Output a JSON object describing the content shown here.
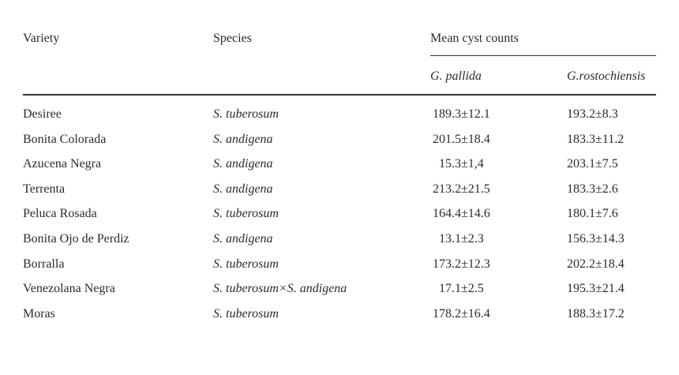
{
  "table": {
    "headers": {
      "variety": "Variety",
      "species": "Species",
      "group": "Mean cyst counts",
      "pallida": "G. pallida",
      "rostochiensis": "G.rostochiensis"
    },
    "rows": [
      {
        "variety": "Desiree",
        "species": "S. tuberosum",
        "pallida": "189.3±12.1",
        "rostochiensis": "193.2±8.3"
      },
      {
        "variety": "Bonita Colorada",
        "species": "S. andigena",
        "pallida": "201.5±18.4",
        "rostochiensis": "183.3±11.2"
      },
      {
        "variety": "Azucena Negra",
        "species": "S. andigena",
        "pallida": "15.3±1,4",
        "rostochiensis": "203.1±7.5"
      },
      {
        "variety": "Terrenta",
        "species": "S. andigena",
        "pallida": "213.2±21.5",
        "rostochiensis": "183.3±2.6"
      },
      {
        "variety": "Peluca Rosada",
        "species": "S. tuberosum",
        "pallida": "164.4±14.6",
        "rostochiensis": "180.1±7.6"
      },
      {
        "variety": "Bonita Ojo de Perdiz",
        "species": "S. andigena",
        "pallida": "13.1±2.3",
        "rostochiensis": "156.3±14.3"
      },
      {
        "variety": "Borralla",
        "species": "S. tuberosum",
        "pallida": "173.2±12.3",
        "rostochiensis": "202.2±18.4"
      },
      {
        "variety": "Venezolana Negra",
        "species": "S. tuberosum×S. andigena",
        "pallida": "17.1±2.5",
        "rostochiensis": "195.3±21.4"
      },
      {
        "variety": "Moras",
        "species": "S. tuberosum",
        "pallida": "178.2±16.4",
        "rostochiensis": "188.3±17.2"
      }
    ]
  }
}
